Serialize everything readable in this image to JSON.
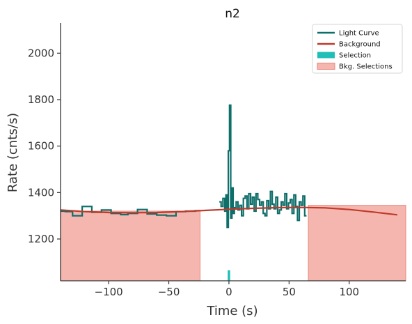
{
  "chart_data": {
    "type": "line",
    "title": "n2",
    "xlabel": "Time (s)",
    "ylabel": "Rate (cnts/s)",
    "xlim": [
      -140,
      147
    ],
    "ylim": [
      1020,
      2130
    ],
    "xticks": [
      -100,
      -50,
      0,
      50,
      100
    ],
    "yticks": [
      1200,
      1400,
      1600,
      1800,
      2000
    ],
    "grid": false,
    "legend_position": "top-right",
    "colors": {
      "light_curve": "#0e6e6a",
      "background": "#c0392b",
      "selection": "#1fbfb8",
      "bkg_selection_fill": "#f4b6ae",
      "bkg_selection_edge": "#e8877c",
      "axis": "#333333"
    },
    "legend": [
      {
        "label": "Light Curve",
        "kind": "line",
        "series": "light_curve"
      },
      {
        "label": "Background",
        "kind": "line",
        "series": "background"
      },
      {
        "label": "Selection",
        "kind": "patch",
        "series": "selection"
      },
      {
        "label": "Bkg. Selections",
        "kind": "patch",
        "series": "bkg_selection"
      }
    ],
    "bkg_selections": [
      {
        "x0": -140,
        "x1": -24,
        "y_top": 1320
      },
      {
        "x0": 66,
        "x1": 147,
        "y_top": 1345
      }
    ],
    "selection": {
      "x0": -1,
      "x1": 1,
      "y_top": 1065
    },
    "background_curve": {
      "x": [
        -140,
        -120,
        -100,
        -80,
        -60,
        -40,
        -20,
        0,
        20,
        40,
        60,
        80,
        100,
        120,
        140
      ],
      "y": [
        1325,
        1318,
        1314,
        1313,
        1314,
        1318,
        1323,
        1328,
        1332,
        1335,
        1336,
        1334,
        1327,
        1316,
        1304
      ]
    },
    "light_curve_coarse": {
      "x": [
        -140,
        -136,
        -130,
        -122,
        -114,
        -106,
        -98,
        -90,
        -84,
        -76,
        -68,
        -60,
        -52,
        -44,
        -36,
        -28,
        -24,
        -15
      ],
      "y": [
        1320,
        1318,
        1300,
        1340,
        1315,
        1325,
        1310,
        1305,
        1310,
        1327,
        1308,
        1303,
        1300,
        1318,
        1320,
        1322,
        null,
        1302
      ]
    },
    "light_curve_fine": {
      "x": [
        -8,
        -6.5,
        -5,
        -3.5,
        -2.5,
        -1.5,
        -0.5,
        0.5,
        1.5,
        2.5,
        3.5,
        4.5,
        6,
        7.5,
        9,
        10.5,
        12,
        13.5,
        15,
        16.5,
        18,
        19.5,
        21,
        22.5,
        24,
        25.5,
        27,
        28.5,
        30,
        31.5,
        33,
        34.5,
        36,
        37.5,
        39,
        40.5,
        42,
        43.5,
        45,
        46.5,
        48,
        49.5,
        51,
        52.5,
        54,
        55.5,
        57,
        58.5,
        60,
        61.5,
        63,
        64.5
      ],
      "y": [
        1360,
        1340,
        1375,
        1320,
        1390,
        1250,
        1580,
        1776,
        1290,
        1420,
        1310,
        1335,
        1360,
        1325,
        1345,
        1300,
        1375,
        1385,
        1330,
        1395,
        1350,
        1380,
        1320,
        1395,
        1370,
        1345,
        1360,
        1310,
        1300,
        1365,
        1330,
        1405,
        1350,
        1330,
        1380,
        1310,
        1325,
        1360,
        1345,
        1395,
        1330,
        1355,
        1370,
        1310,
        1390,
        1340,
        1280,
        1360,
        1345,
        1385,
        1300,
        1340
      ]
    }
  }
}
